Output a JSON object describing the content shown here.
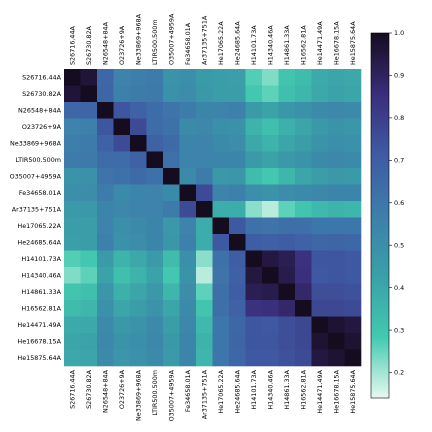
{
  "chart_data": {
    "type": "heatmap",
    "title": "",
    "xlabel": "",
    "ylabel": "",
    "labels": [
      "S26716.44A",
      "S26730.82A",
      "N26548+84A",
      "O23726+9A",
      "Ne33869+968A",
      "LTIR500.500m",
      "O35007+4959A",
      "Fe34658.01A",
      "Ar37135+751A",
      "He17065.22A",
      "He24685.64A",
      "H14101.73A",
      "H14340.46A",
      "H14861.33A",
      "H16562.81A",
      "He14471.49A",
      "He16678.15A",
      "He15875.64A"
    ],
    "matrix": [
      [
        1.0,
        0.96,
        0.66,
        0.55,
        0.57,
        0.58,
        0.48,
        0.5,
        0.45,
        0.44,
        0.43,
        0.27,
        0.23,
        0.3,
        0.33,
        0.39,
        0.41,
        0.4
      ],
      [
        0.96,
        1.0,
        0.67,
        0.56,
        0.58,
        0.59,
        0.49,
        0.51,
        0.46,
        0.44,
        0.44,
        0.29,
        0.26,
        0.32,
        0.35,
        0.4,
        0.42,
        0.41
      ],
      [
        0.66,
        0.67,
        1.0,
        0.73,
        0.68,
        0.64,
        0.61,
        0.58,
        0.54,
        0.55,
        0.56,
        0.45,
        0.42,
        0.47,
        0.49,
        0.52,
        0.53,
        0.52
      ],
      [
        0.55,
        0.56,
        0.73,
        1.0,
        0.76,
        0.64,
        0.62,
        0.52,
        0.53,
        0.5,
        0.49,
        0.36,
        0.32,
        0.37,
        0.41,
        0.46,
        0.48,
        0.47
      ],
      [
        0.57,
        0.58,
        0.68,
        0.76,
        1.0,
        0.68,
        0.65,
        0.54,
        0.55,
        0.52,
        0.51,
        0.4,
        0.36,
        0.41,
        0.44,
        0.48,
        0.5,
        0.49
      ],
      [
        0.58,
        0.59,
        0.64,
        0.64,
        0.68,
        1.0,
        0.62,
        0.55,
        0.55,
        0.54,
        0.54,
        0.45,
        0.42,
        0.46,
        0.48,
        0.52,
        0.53,
        0.52
      ],
      [
        0.48,
        0.49,
        0.61,
        0.62,
        0.65,
        0.62,
        1.0,
        0.52,
        0.58,
        0.46,
        0.47,
        0.33,
        0.29,
        0.35,
        0.41,
        0.44,
        0.46,
        0.45
      ],
      [
        0.5,
        0.51,
        0.58,
        0.52,
        0.54,
        0.55,
        0.52,
        1.0,
        0.76,
        0.55,
        0.56,
        0.5,
        0.48,
        0.51,
        0.52,
        0.53,
        0.54,
        0.54
      ],
      [
        0.45,
        0.46,
        0.54,
        0.53,
        0.55,
        0.55,
        0.58,
        0.76,
        1.0,
        0.38,
        0.38,
        0.22,
        0.18,
        0.26,
        0.3,
        0.34,
        0.36,
        0.35
      ],
      [
        0.44,
        0.44,
        0.55,
        0.5,
        0.52,
        0.54,
        0.46,
        0.55,
        0.38,
        1.0,
        0.72,
        0.62,
        0.61,
        0.63,
        0.63,
        0.6,
        0.6,
        0.6
      ],
      [
        0.43,
        0.44,
        0.56,
        0.49,
        0.51,
        0.54,
        0.47,
        0.56,
        0.38,
        0.72,
        1.0,
        0.7,
        0.69,
        0.7,
        0.68,
        0.66,
        0.67,
        0.66
      ],
      [
        0.27,
        0.29,
        0.45,
        0.36,
        0.4,
        0.45,
        0.33,
        0.5,
        0.22,
        0.62,
        0.7,
        1.0,
        0.95,
        0.92,
        0.84,
        0.73,
        0.73,
        0.72
      ],
      [
        0.23,
        0.26,
        0.42,
        0.32,
        0.36,
        0.42,
        0.29,
        0.48,
        0.18,
        0.61,
        0.69,
        0.95,
        1.0,
        0.93,
        0.85,
        0.72,
        0.73,
        0.72
      ],
      [
        0.3,
        0.32,
        0.47,
        0.37,
        0.41,
        0.46,
        0.35,
        0.51,
        0.26,
        0.63,
        0.7,
        0.92,
        0.93,
        1.0,
        0.88,
        0.75,
        0.75,
        0.74
      ],
      [
        0.33,
        0.35,
        0.49,
        0.41,
        0.44,
        0.48,
        0.41,
        0.52,
        0.3,
        0.63,
        0.68,
        0.84,
        0.85,
        0.88,
        1.0,
        0.77,
        0.77,
        0.76
      ],
      [
        0.39,
        0.4,
        0.52,
        0.46,
        0.48,
        0.52,
        0.44,
        0.53,
        0.34,
        0.6,
        0.66,
        0.73,
        0.72,
        0.75,
        0.77,
        1.0,
        0.97,
        0.95
      ],
      [
        0.41,
        0.42,
        0.53,
        0.48,
        0.5,
        0.53,
        0.46,
        0.54,
        0.36,
        0.6,
        0.67,
        0.73,
        0.73,
        0.75,
        0.77,
        0.97,
        1.0,
        0.97
      ],
      [
        0.4,
        0.41,
        0.52,
        0.47,
        0.49,
        0.52,
        0.45,
        0.54,
        0.35,
        0.6,
        0.66,
        0.72,
        0.72,
        0.74,
        0.76,
        0.95,
        0.97,
        1.0
      ]
    ],
    "colorbar": {
      "range": [
        0.14,
        1.0
      ],
      "ticks": [
        "0.2",
        "0.3",
        "0.4",
        "0.5",
        "0.6",
        "0.7",
        "0.8",
        "0.9",
        "1.0"
      ],
      "colormap": [
        "#e6f9ef",
        "#43c9b0",
        "#3aa0a8",
        "#3d7eab",
        "#3f5aa4",
        "#3a2d7a",
        "#160c20"
      ]
    },
    "grid": false,
    "legend": "colorbar-right"
  }
}
